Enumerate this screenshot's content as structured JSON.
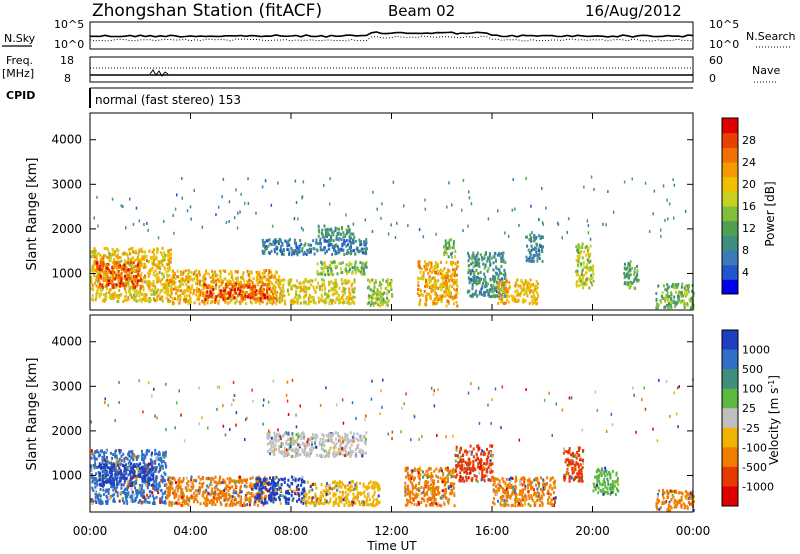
{
  "header": {
    "title": "Zhongshan Station (fitACF)",
    "beam": "Beam 02",
    "date": "16/Aug/2012"
  },
  "strips": {
    "nsky_label": "N.Sky",
    "nsky_ticks": [
      "10^5",
      "10^0"
    ],
    "nsearch_label": "N.Search",
    "nsearch_ticks": [
      "10^5",
      "10^0"
    ],
    "freq_label": "Freq.",
    "freq_unit": "[MHz]",
    "freq_ticks": [
      "18",
      "8"
    ],
    "nave_label": "Nave",
    "nave_ticks": [
      "60",
      "0"
    ],
    "cpid_label": "CPID",
    "cpid_text": "normal (fast stereo) 153"
  },
  "chart_data": [
    {
      "type": "heatmap",
      "name": "power",
      "ylabel": "Slant Range [km]",
      "xlabel": "",
      "x_ticks": [
        "00:00",
        "04:00",
        "08:00",
        "12:00",
        "16:00",
        "20:00",
        "00:00"
      ],
      "x_hours": [
        0,
        4,
        8,
        12,
        16,
        20,
        24
      ],
      "y_ticks": [
        1000,
        2000,
        3000,
        4000
      ],
      "ylim": [
        180,
        4600
      ],
      "xlim_hours": [
        0,
        24
      ],
      "colorbar": {
        "label": "Power [dB]",
        "ticks": [
          "28",
          "24",
          "20",
          "16",
          "12",
          "8",
          "4"
        ],
        "tick_values": [
          28,
          24,
          20,
          16,
          12,
          8,
          4
        ],
        "range": [
          0,
          32
        ],
        "colors": [
          "#0000e6",
          "#2255cc",
          "#3a7bb8",
          "#3f8f7e",
          "#4f9f55",
          "#7fbf3c",
          "#c8d020",
          "#f0c000",
          "#f59a00",
          "#f07000",
          "#e84000",
          "#e00000"
        ]
      },
      "patches": [
        {
          "t0": 0.0,
          "t1": 3.2,
          "r0": 400,
          "r1": 1600,
          "v": 20
        },
        {
          "t0": 0.2,
          "t1": 2.0,
          "r0": 700,
          "r1": 1300,
          "v": 27
        },
        {
          "t0": 3.0,
          "t1": 7.5,
          "r0": 350,
          "r1": 1100,
          "v": 22
        },
        {
          "t0": 4.5,
          "t1": 7.2,
          "r0": 450,
          "r1": 800,
          "v": 28
        },
        {
          "t0": 7.5,
          "t1": 10.5,
          "r0": 350,
          "r1": 900,
          "v": 19
        },
        {
          "t0": 9.0,
          "t1": 11.0,
          "r0": 1000,
          "r1": 1300,
          "v": 14
        },
        {
          "t0": 6.8,
          "t1": 11.0,
          "r0": 1450,
          "r1": 1800,
          "v": 7
        },
        {
          "t0": 9.0,
          "t1": 10.5,
          "r0": 1800,
          "r1": 2100,
          "v": 10
        },
        {
          "t0": 11.0,
          "t1": 12.0,
          "r0": 300,
          "r1": 900,
          "v": 15
        },
        {
          "t0": 13.0,
          "t1": 14.6,
          "r0": 300,
          "r1": 1300,
          "v": 22
        },
        {
          "t0": 14.0,
          "t1": 14.5,
          "r0": 1400,
          "r1": 1800,
          "v": 12
        },
        {
          "t0": 15.0,
          "t1": 16.5,
          "r0": 500,
          "r1": 1500,
          "v": 9
        },
        {
          "t0": 16.2,
          "t1": 17.8,
          "r0": 350,
          "r1": 900,
          "v": 21
        },
        {
          "t0": 17.3,
          "t1": 18.0,
          "r0": 1300,
          "r1": 1900,
          "v": 8
        },
        {
          "t0": 19.3,
          "t1": 20.0,
          "r0": 700,
          "r1": 1700,
          "v": 16
        },
        {
          "t0": 21.2,
          "t1": 21.8,
          "r0": 700,
          "r1": 1300,
          "v": 12
        },
        {
          "t0": 22.5,
          "t1": 24.0,
          "r0": 250,
          "r1": 800,
          "v": 13
        }
      ]
    },
    {
      "type": "heatmap",
      "name": "velocity",
      "ylabel": "Slant Range [km]",
      "xlabel": "Time UT",
      "x_ticks": [
        "00:00",
        "04:00",
        "08:00",
        "12:00",
        "16:00",
        "20:00",
        "00:00"
      ],
      "x_hours": [
        0,
        4,
        8,
        12,
        16,
        20,
        24
      ],
      "y_ticks": [
        1000,
        2000,
        3000,
        4000
      ],
      "ylim": [
        180,
        4600
      ],
      "xlim_hours": [
        0,
        24
      ],
      "colorbar": {
        "label": "Velocity [m s",
        "label_sup": "-1",
        "label_tail": "]",
        "ticks": [
          "1000",
          "500",
          "100",
          "25",
          "-25",
          "-100",
          "-500",
          "-1000"
        ],
        "bands": [
          "#1e3fbf",
          "#2f6fc8",
          "#3f8f7e",
          "#5cb840",
          "#c0c0c0",
          "#f0b400",
          "#f07c00",
          "#e83800",
          "#e00000"
        ]
      },
      "patches": [
        {
          "t0": 0.0,
          "t1": 3.0,
          "r0": 400,
          "r1": 1600,
          "v": "#2f6fc8"
        },
        {
          "t0": 0.3,
          "t1": 2.5,
          "r0": 800,
          "r1": 1300,
          "v": "#1e3fbf"
        },
        {
          "t0": 3.0,
          "t1": 7.0,
          "r0": 350,
          "r1": 1000,
          "v": "#f07c00"
        },
        {
          "t0": 6.5,
          "t1": 8.5,
          "r0": 400,
          "r1": 1000,
          "v": "#1e3fbf"
        },
        {
          "t0": 8.5,
          "t1": 11.5,
          "r0": 350,
          "r1": 900,
          "v": "#f0b400"
        },
        {
          "t0": 7.0,
          "t1": 11.0,
          "r0": 1450,
          "r1": 2000,
          "v": "#c0c0c0"
        },
        {
          "t0": 12.5,
          "t1": 14.5,
          "r0": 350,
          "r1": 1200,
          "v": "#f07c00"
        },
        {
          "t0": 14.5,
          "t1": 16.0,
          "r0": 900,
          "r1": 1700,
          "v": "#e83800"
        },
        {
          "t0": 16.0,
          "t1": 18.5,
          "r0": 350,
          "r1": 1000,
          "v": "#f07c00"
        },
        {
          "t0": 18.8,
          "t1": 19.6,
          "r0": 900,
          "r1": 1700,
          "v": "#e83800"
        },
        {
          "t0": 20.0,
          "t1": 21.0,
          "r0": 600,
          "r1": 1200,
          "v": "#5cb840"
        },
        {
          "t0": 22.5,
          "t1": 24.0,
          "r0": 250,
          "r1": 700,
          "v": "#f07c00"
        }
      ]
    }
  ]
}
